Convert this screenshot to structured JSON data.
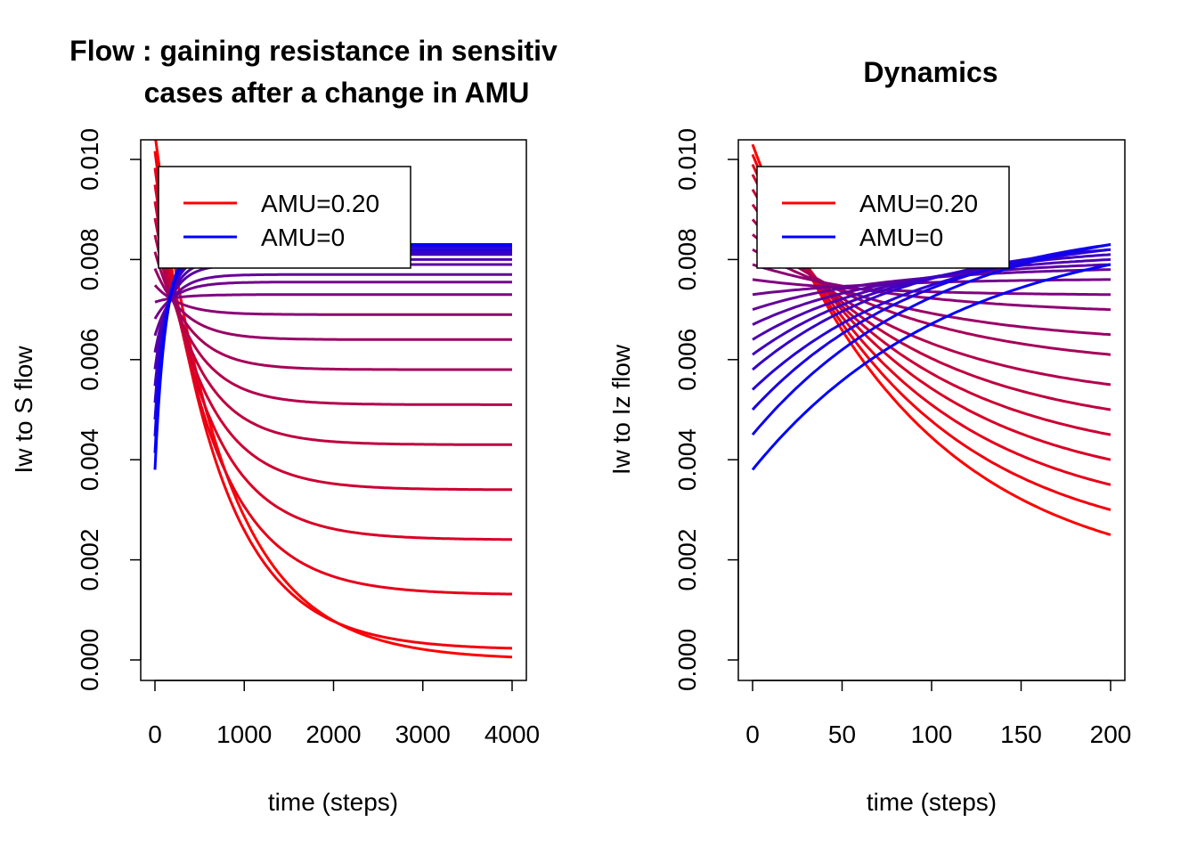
{
  "chart_data": [
    {
      "type": "line",
      "title_lines": [
        "Flow : gaining resistance in sensitiv",
        "cases after a change in AMU"
      ],
      "xlabel": "time (steps)",
      "ylabel": "Iw to S flow",
      "xlim": [
        0,
        4000
      ],
      "ylim": [
        0,
        0.0105
      ],
      "xticks": [
        0,
        1000,
        2000,
        3000,
        4000
      ],
      "xtick_labels": [
        "0",
        "1000",
        "2000",
        "3000",
        "4000"
      ],
      "yticks": [
        0,
        0.002,
        0.004,
        0.006,
        0.008,
        0.01
      ],
      "ytick_labels": [
        "0.000",
        "0.002",
        "0.004",
        "0.006",
        "0.008",
        "0.010"
      ],
      "grid": false,
      "legend": {
        "placement": "top-left",
        "entries": [
          {
            "label": "AMU=0.20",
            "color": "#ff0000"
          },
          {
            "label": "AMU=0",
            "color": "#0000ff"
          }
        ]
      },
      "series_model": {
        "description": "21 curves, one per AMU level, colored from red (AMU=0.20) to blue (AMU=0)",
        "count": 21,
        "start_value_high": 0.0105,
        "start_value_low": 0.0038,
        "final_values": [
          0.0,
          0.0002,
          0.0013,
          0.0024,
          0.0034,
          0.0043,
          0.0051,
          0.0058,
          0.0064,
          0.0069,
          0.0073,
          0.0076,
          0.0078,
          0.008,
          0.0081,
          0.0082,
          0.0082,
          0.0083,
          0.0083,
          0.0083,
          0.0083
        ],
        "final_values_by_curve": [
          0.0,
          0.0002,
          0.0013,
          0.0024,
          0.0034,
          0.0043,
          0.0051,
          0.0058,
          0.0064,
          0.0069,
          0.0073,
          0.00755,
          0.0077,
          0.0079,
          0.008,
          0.0081,
          0.00815,
          0.0082,
          0.00825,
          0.0083,
          0.0083
        ]
      }
    },
    {
      "type": "line",
      "title_lines": [
        "Dynamics"
      ],
      "xlabel": "time (steps)",
      "ylabel": "Iw to Iz flow",
      "xlim": [
        0,
        200
      ],
      "ylim": [
        0,
        0.0105
      ],
      "xticks": [
        0,
        50,
        100,
        150,
        200
      ],
      "xtick_labels": [
        "0",
        "50",
        "100",
        "150",
        "200"
      ],
      "yticks": [
        0,
        0.002,
        0.004,
        0.006,
        0.008,
        0.01
      ],
      "ytick_labels": [
        "0.000",
        "0.002",
        "0.004",
        "0.006",
        "0.008",
        "0.010"
      ],
      "grid": false,
      "legend": {
        "placement": "top-left",
        "entries": [
          {
            "label": "AMU=0.20",
            "color": "#ff0000"
          },
          {
            "label": "AMU=0",
            "color": "#0000ff"
          }
        ]
      },
      "series_model": {
        "description": "21 curves from red to blue; all start near x=0 and spread by x=200",
        "count": 21,
        "start_values": [
          0.0103,
          0.0101,
          0.0099,
          0.0097,
          0.0094,
          0.0091,
          0.0088,
          0.0085,
          0.0082,
          0.0079,
          0.0076,
          0.0073,
          0.007,
          0.0067,
          0.0064,
          0.0061,
          0.0058,
          0.0054,
          0.005,
          0.0045,
          0.0038
        ],
        "end_values": [
          0.0025,
          0.003,
          0.0035,
          0.004,
          0.0045,
          0.005,
          0.0055,
          0.0061,
          0.0065,
          0.007,
          0.0073,
          0.0076,
          0.0078,
          0.0079,
          0.008,
          0.0081,
          0.0082,
          0.0082,
          0.0083,
          0.0083,
          0.0079
        ]
      }
    }
  ]
}
